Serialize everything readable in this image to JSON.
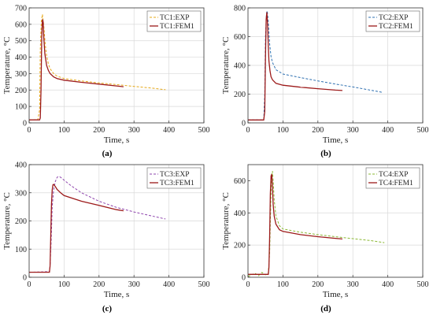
{
  "chart_data": [
    {
      "type": "line",
      "panel_label": "(a)",
      "xlabel": "Time, s",
      "ylabel": "Temperature, °C",
      "xlim": [
        0,
        500
      ],
      "ylim": [
        0,
        700
      ],
      "xticks": [
        0,
        100,
        200,
        300,
        400,
        500
      ],
      "yticks": [
        0,
        100,
        200,
        300,
        400,
        500,
        600,
        700
      ],
      "legend": "top-right",
      "series": [
        {
          "name": "TC1:EXP",
          "style": "dashed",
          "color": "#e6a817",
          "x": [
            0,
            25,
            30,
            32,
            35,
            38,
            42,
            46,
            50,
            55,
            60,
            70,
            80,
            100,
            150,
            200,
            250,
            300,
            350,
            390
          ],
          "y": [
            18,
            20,
            80,
            450,
            620,
            660,
            590,
            480,
            410,
            360,
            330,
            300,
            285,
            270,
            255,
            243,
            233,
            222,
            212,
            202
          ]
        },
        {
          "name": "TC1:FEM1",
          "style": "solid",
          "color": "#9c1a1a",
          "x": [
            0,
            30,
            32,
            34,
            36,
            38,
            40,
            42,
            45,
            50,
            55,
            60,
            70,
            80,
            100,
            150,
            200,
            250,
            270
          ],
          "y": [
            18,
            18,
            30,
            200,
            520,
            630,
            615,
            520,
            420,
            350,
            320,
            300,
            280,
            270,
            260,
            247,
            236,
            225,
            220
          ]
        }
      ]
    },
    {
      "type": "line",
      "panel_label": "(b)",
      "xlabel": "Time, s",
      "ylabel": "Temperature, °C",
      "xlim": [
        0,
        500
      ],
      "ylim": [
        0,
        800
      ],
      "xticks": [
        0,
        100,
        200,
        300,
        400,
        500
      ],
      "yticks": [
        0,
        200,
        400,
        600,
        800
      ],
      "legend": "top-right",
      "series": [
        {
          "name": "TC2:EXP",
          "style": "dashed",
          "color": "#2d6fb0",
          "x": [
            0,
            45,
            48,
            50,
            53,
            55,
            58,
            62,
            66,
            70,
            80,
            100,
            150,
            200,
            250,
            300,
            350,
            385
          ],
          "y": [
            20,
            20,
            200,
            600,
            760,
            780,
            700,
            550,
            460,
            420,
            370,
            340,
            315,
            292,
            270,
            250,
            228,
            212
          ]
        },
        {
          "name": "TC2:FEM1",
          "style": "solid",
          "color": "#9c1a1a",
          "x": [
            0,
            45,
            48,
            50,
            52,
            54,
            56,
            58,
            60,
            63,
            66,
            70,
            80,
            100,
            150,
            200,
            250,
            270
          ],
          "y": [
            20,
            20,
            80,
            450,
            720,
            770,
            680,
            540,
            430,
            360,
            320,
            300,
            275,
            262,
            248,
            238,
            228,
            225
          ]
        }
      ]
    },
    {
      "type": "line",
      "panel_label": "(c)",
      "xlabel": "Time, s",
      "ylabel": "Temperature, °C",
      "xlim": [
        0,
        500
      ],
      "ylim": [
        0,
        400
      ],
      "xticks": [
        0,
        100,
        200,
        300,
        400,
        500
      ],
      "yticks": [
        0,
        100,
        200,
        300,
        400
      ],
      "legend": "top-right",
      "series": [
        {
          "name": "TC3:EXP",
          "style": "dashed",
          "color": "#8e44ad",
          "x": [
            0,
            58,
            60,
            63,
            66,
            70,
            75,
            80,
            85,
            90,
            100,
            120,
            150,
            200,
            250,
            300,
            350,
            390
          ],
          "y": [
            18,
            20,
            40,
            130,
            250,
            310,
            340,
            355,
            358,
            355,
            345,
            325,
            300,
            270,
            248,
            232,
            218,
            207
          ]
        },
        {
          "name": "TC3:FEM1",
          "style": "solid",
          "color": "#9c1a1a",
          "x": [
            0,
            58,
            60,
            62,
            64,
            66,
            68,
            70,
            75,
            80,
            90,
            100,
            150,
            200,
            250,
            270
          ],
          "y": [
            18,
            18,
            40,
            150,
            260,
            310,
            328,
            330,
            322,
            312,
            300,
            290,
            270,
            255,
            240,
            236
          ]
        }
      ]
    },
    {
      "type": "line",
      "panel_label": "(d)",
      "xlabel": "Time, s",
      "ylabel": "Temperature, °C",
      "xlim": [
        0,
        500
      ],
      "ylim": [
        0,
        700
      ],
      "xticks": [
        0,
        100,
        200,
        300,
        400,
        500
      ],
      "yticks": [
        0,
        200,
        400,
        600
      ],
      "legend": "top-right",
      "series": [
        {
          "name": "TC4:EXP",
          "style": "dashed",
          "color": "#8ab833",
          "x": [
            0,
            20,
            30,
            40,
            50,
            58,
            62,
            65,
            68,
            70,
            72,
            75,
            80,
            90,
            100,
            150,
            200,
            250,
            300,
            350,
            390
          ],
          "y": [
            5,
            25,
            10,
            30,
            15,
            25,
            150,
            450,
            640,
            660,
            600,
            480,
            380,
            320,
            300,
            280,
            265,
            252,
            240,
            228,
            215
          ]
        },
        {
          "name": "TC4:FEM1",
          "style": "solid",
          "color": "#9c1a1a",
          "x": [
            0,
            58,
            60,
            62,
            64,
            66,
            68,
            70,
            72,
            75,
            80,
            90,
            100,
            150,
            200,
            250,
            270
          ],
          "y": [
            18,
            18,
            60,
            250,
            520,
            630,
            640,
            560,
            450,
            380,
            330,
            295,
            285,
            265,
            252,
            242,
            238
          ]
        }
      ]
    }
  ]
}
